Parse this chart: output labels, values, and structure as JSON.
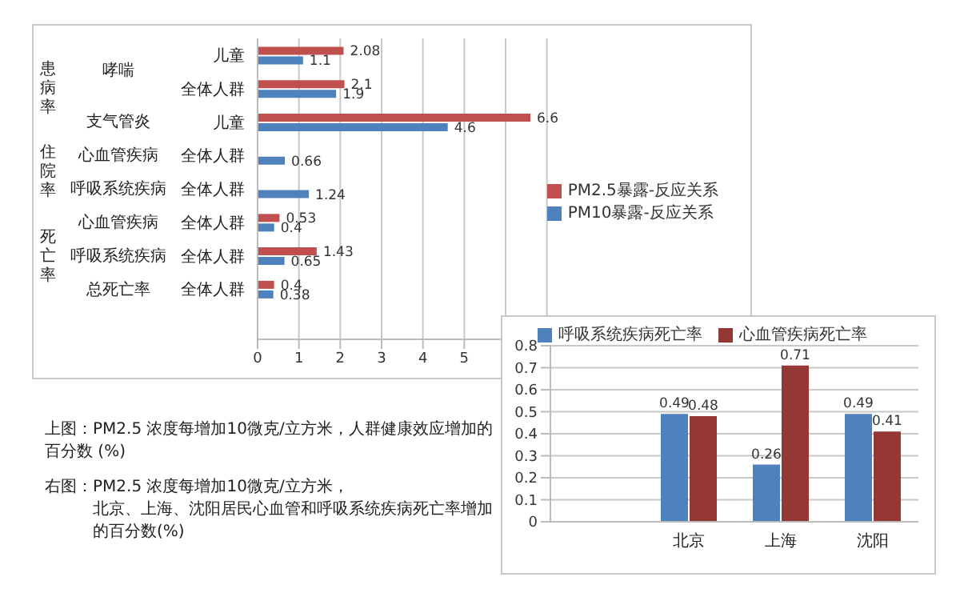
{
  "chart_data": [
    {
      "type": "bar",
      "orientation": "horizontal",
      "categories": [
        "儿童",
        "全体人群",
        "儿童",
        "全体人群",
        "全体人群",
        "全体人群",
        "全体人群",
        "全体人群",
        null
      ],
      "series": [
        {
          "name": "PM2.5暴露-反应关系",
          "color": "#c0504d",
          "values": [
            2.08,
            2.1,
            6.6,
            null,
            null,
            0.53,
            1.43,
            0.4,
            null
          ]
        },
        {
          "name": "PM10暴露-反应关系",
          "color": "#4f81bd",
          "values": [
            1.1,
            1.9,
            4.6,
            0.66,
            1.24,
            0.4,
            0.65,
            0.38,
            null
          ]
        }
      ],
      "xlim": [
        0,
        7
      ],
      "xticks": [
        0,
        1,
        2,
        3,
        4,
        5,
        {
          "value": 6,
          "label": null
        },
        {
          "value": 7,
          "label": null
        }
      ],
      "grid": "x",
      "legend": "right",
      "data_labels": true,
      "annotations": [
        "患病率",
        "住院率",
        "死亡率",
        "哮喘",
        "支气管炎",
        "心血管疾病",
        "呼吸系统疾病",
        "心血管疾病",
        "呼吸系统疾病",
        "总死亡率",
        "上图：PM2.5 浓度每增加10微克/立方米，人群健康效应增加的百分数 (%)"
      ]
    },
    {
      "type": "bar",
      "categories": [
        null,
        "北京",
        "上海",
        "沈阳"
      ],
      "series": [
        {
          "name": "呼吸系统疾病死亡率",
          "color": "#4f81bd",
          "values": [
            null,
            0.49,
            0.26,
            0.49
          ]
        },
        {
          "name": "心血管疾病死亡率",
          "color": "#953735",
          "values": [
            null,
            0.48,
            0.71,
            0.41
          ]
        }
      ],
      "ylim": [
        0,
        0.8
      ],
      "yticks": [
        0,
        0.1,
        0.2,
        0.3,
        0.4,
        0.5,
        0.6,
        0.7,
        0.8
      ],
      "grid": "y",
      "legend": "top",
      "data_labels": true,
      "annotations": [
        "右图：PM2.5 浓度每增加10微克/立方米，",
        "北京、上海、沈阳居民心血管和呼吸系统疾病死亡率增加的百分数(%)"
      ]
    }
  ]
}
